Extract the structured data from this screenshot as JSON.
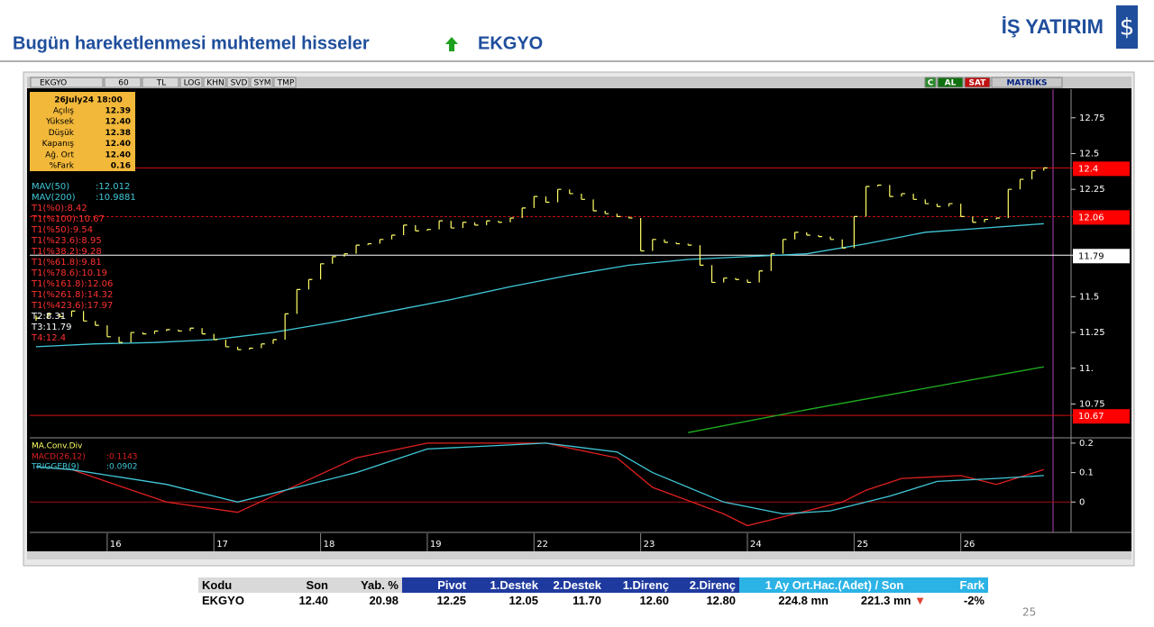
{
  "header": {
    "title": "Bugün hareketlenmesi muhtemel hisseler",
    "symbol": "EKGYO",
    "logo": "İŞ YATIRIM"
  },
  "chart_data": {
    "type": "ohlc",
    "toolbar": [
      "EKGYO",
      "60",
      "TL",
      "LOG",
      "KHN",
      "SVD",
      "SYM",
      "TMP"
    ],
    "toolbar_right": [
      "C",
      "AL",
      "SAT",
      "MATRİKS"
    ],
    "info_box": {
      "title": "26July24 18:00",
      "rows": [
        [
          "Açılış",
          "12.39"
        ],
        [
          "Yüksek",
          "12.40"
        ],
        [
          "Düşük",
          "12.38"
        ],
        [
          "Kapanış",
          "12.40"
        ],
        [
          "Ağ. Ort",
          "12.40"
        ],
        [
          "%Fark",
          "0.16"
        ]
      ]
    },
    "categories": [
      null,
      null,
      null,
      null,
      null,
      null,
      "16",
      null,
      null,
      null,
      null,
      null,
      null,
      null,
      null,
      "17",
      null,
      null,
      null,
      null,
      null,
      null,
      null,
      null,
      "18",
      null,
      null,
      null,
      null,
      null,
      null,
      null,
      null,
      "19",
      null,
      null,
      null,
      null,
      null,
      null,
      null,
      null,
      "22",
      null,
      null,
      null,
      null,
      null,
      null,
      null,
      null,
      "23",
      null,
      null,
      null,
      null,
      null,
      null,
      null,
      null,
      "24",
      null,
      null,
      null,
      null,
      null,
      null,
      null,
      null,
      "25",
      null,
      null,
      null,
      null,
      null,
      null,
      null,
      null,
      "26",
      null,
      null,
      null,
      null,
      null,
      null,
      null
    ],
    "values": [
      11.35,
      11.38,
      11.36,
      11.4,
      11.33,
      11.3,
      11.22,
      11.18,
      11.25,
      11.24,
      11.26,
      11.27,
      11.26,
      11.28,
      11.24,
      11.2,
      11.15,
      11.13,
      11.14,
      11.17,
      11.2,
      11.38,
      11.55,
      11.62,
      11.73,
      11.78,
      11.8,
      11.86,
      11.87,
      11.9,
      11.93,
      12.0,
      11.96,
      11.97,
      12.03,
      11.98,
      12.02,
      12.0,
      12.03,
      12.02,
      12.05,
      12.12,
      12.2,
      12.16,
      12.25,
      12.22,
      12.18,
      12.1,
      12.08,
      12.06,
      12.05,
      11.82,
      11.9,
      11.88,
      11.87,
      11.86,
      11.72,
      11.6,
      11.63,
      11.62,
      11.6,
      11.68,
      11.8,
      11.9,
      11.95,
      11.93,
      11.92,
      11.9,
      11.84,
      12.06,
      12.27,
      12.28,
      12.2,
      12.22,
      12.18,
      12.15,
      12.13,
      12.15,
      12.06,
      12.02,
      12.04,
      12.05,
      12.25,
      12.32,
      12.38,
      12.4
    ],
    "color": "#ffff66",
    "ylim": [
      10.52,
      12.95
    ],
    "yticks": [
      12.75,
      12.5,
      12.25,
      11.5,
      11.25,
      {
        "value": 11,
        "label": "11."
      },
      10.75
    ],
    "grid": false,
    "moving_averages": [
      {
        "name": "MAV(50)",
        "readout": ":12.012",
        "color": "#40c8d8",
        "x": [
          0,
          5,
          10,
          15,
          20,
          25,
          30,
          35,
          40,
          45,
          50,
          55,
          60,
          65,
          70,
          75,
          80,
          85
        ],
        "values": [
          11.15,
          11.17,
          11.18,
          11.2,
          11.25,
          11.32,
          11.4,
          11.48,
          11.57,
          11.65,
          11.72,
          11.76,
          11.78,
          11.8,
          11.87,
          11.95,
          11.98,
          12.01
        ]
      },
      {
        "name": "MAV(200)",
        "readout": ":10.9881",
        "color": "#20b020",
        "x": [
          55,
          65,
          75,
          85
        ],
        "values": [
          10.55,
          10.71,
          10.86,
          11.01
        ]
      }
    ],
    "level_texts": [
      {
        "text": "T1(%0):8.42",
        "color": "#ff3030"
      },
      {
        "text": "T1(%100):10.67",
        "color": "#ff3030"
      },
      {
        "text": "T1(%50):9.54",
        "color": "#ff3030"
      },
      {
        "text": "T1(%23.6):8.95",
        "color": "#ff3030"
      },
      {
        "text": "T1(%38.2):9.28",
        "color": "#ff3030"
      },
      {
        "text": "T1(%61.8):9.81",
        "color": "#ff3030"
      },
      {
        "text": "T1(%78.6):10.19",
        "color": "#ff3030"
      },
      {
        "text": "T1(%161.8):12.06",
        "color": "#ff3030"
      },
      {
        "text": "T1(%261.8):14.32",
        "color": "#ff3030"
      },
      {
        "text": "T1(%423.6):17.97",
        "color": "#ff3030"
      },
      {
        "text": "T2:8.31",
        "color": "#ffffff"
      },
      {
        "text": "T3:11.79",
        "color": "#ffffff"
      },
      {
        "text": "T4:12.4",
        "color": "#ff3030"
      }
    ],
    "levels": [
      {
        "value": 12.4,
        "color": "#d01010",
        "dashed": false,
        "box_color": "#ff0000"
      },
      {
        "value": 12.06,
        "color": "#d01010",
        "dashed": true,
        "box_color": "#ff0000"
      },
      {
        "value": 11.79,
        "color": "#ffffff",
        "dashed": false,
        "box_color": "#ffffff"
      },
      {
        "value": 10.67,
        "color": "#d01010",
        "dashed": false,
        "box_color": "#ff0000"
      }
    ],
    "macd": {
      "title": "MA.Conv.Div",
      "ylim": [
        -0.1,
        0.215
      ],
      "yticks": [
        0.2,
        0.1,
        0
      ],
      "series": [
        {
          "name": "MACD(26,12)",
          "readout": ":0.1143",
          "color": "#e02020",
          "x": [
            0,
            3,
            11,
            17,
            27,
            33,
            43,
            49,
            52,
            58,
            60,
            63,
            68,
            70,
            73,
            78,
            81,
            85
          ],
          "values": [
            0.12,
            0.11,
            0.0,
            -0.035,
            0.15,
            0.2,
            0.2,
            0.15,
            0.05,
            -0.04,
            -0.08,
            -0.05,
            0.0,
            0.04,
            0.08,
            0.09,
            0.06,
            0.11
          ]
        },
        {
          "name": "TRIGGER(9)",
          "readout": ":0.0902",
          "color": "#40c8d8",
          "x": [
            0,
            3,
            11,
            17,
            27,
            33,
            43,
            49,
            52,
            58,
            63,
            67,
            72,
            76,
            81,
            85
          ],
          "values": [
            0.12,
            0.11,
            0.06,
            0.0,
            0.1,
            0.18,
            0.2,
            0.17,
            0.1,
            0.0,
            -0.04,
            -0.03,
            0.02,
            0.07,
            0.08,
            0.09
          ]
        }
      ]
    }
  },
  "table": {
    "header": [
      "Kodu",
      "Son",
      "Yab. %",
      "Pivot",
      "1.Destek",
      "2.Destek",
      "1.Direnç",
      "2.Direnç",
      "1 Ay Ort.Hac.(Adet)  /  Son",
      "Fark"
    ],
    "row": [
      "EKGYO",
      "12.40",
      "20.98",
      "12.25",
      "12.05",
      "11.70",
      "12.60",
      "12.80",
      "224.8 mn",
      "221.3 mn",
      "-2%"
    ]
  },
  "page_number": "25"
}
